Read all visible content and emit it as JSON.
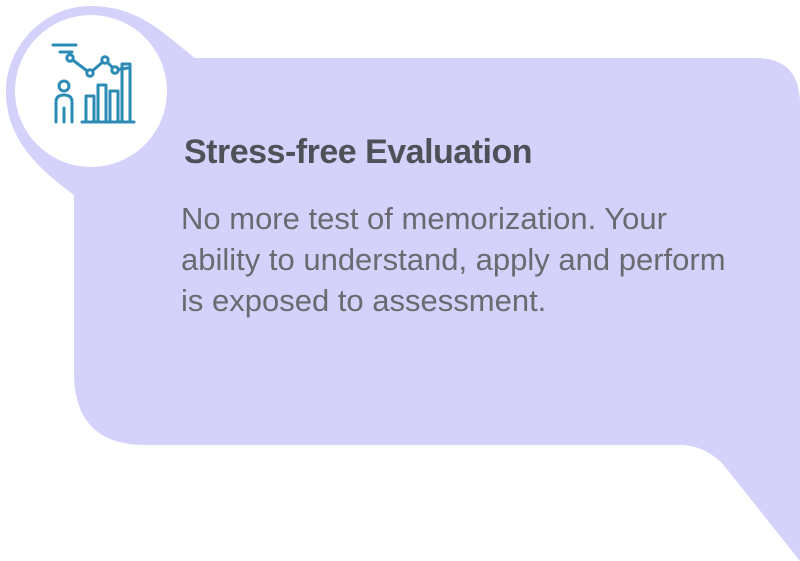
{
  "card": {
    "title": "Stress-free Evaluation",
    "body": "No more test of memorization. Your ability to understand, apply and perform is exposed to assessment.",
    "icon": "person-growth-chart-icon"
  },
  "colors": {
    "card_background": "#d4d1fb",
    "icon_circle": "#ffffff",
    "icon_stroke": "#2b8bb5",
    "title_text": "#505058",
    "body_text": "#6a6a70"
  }
}
